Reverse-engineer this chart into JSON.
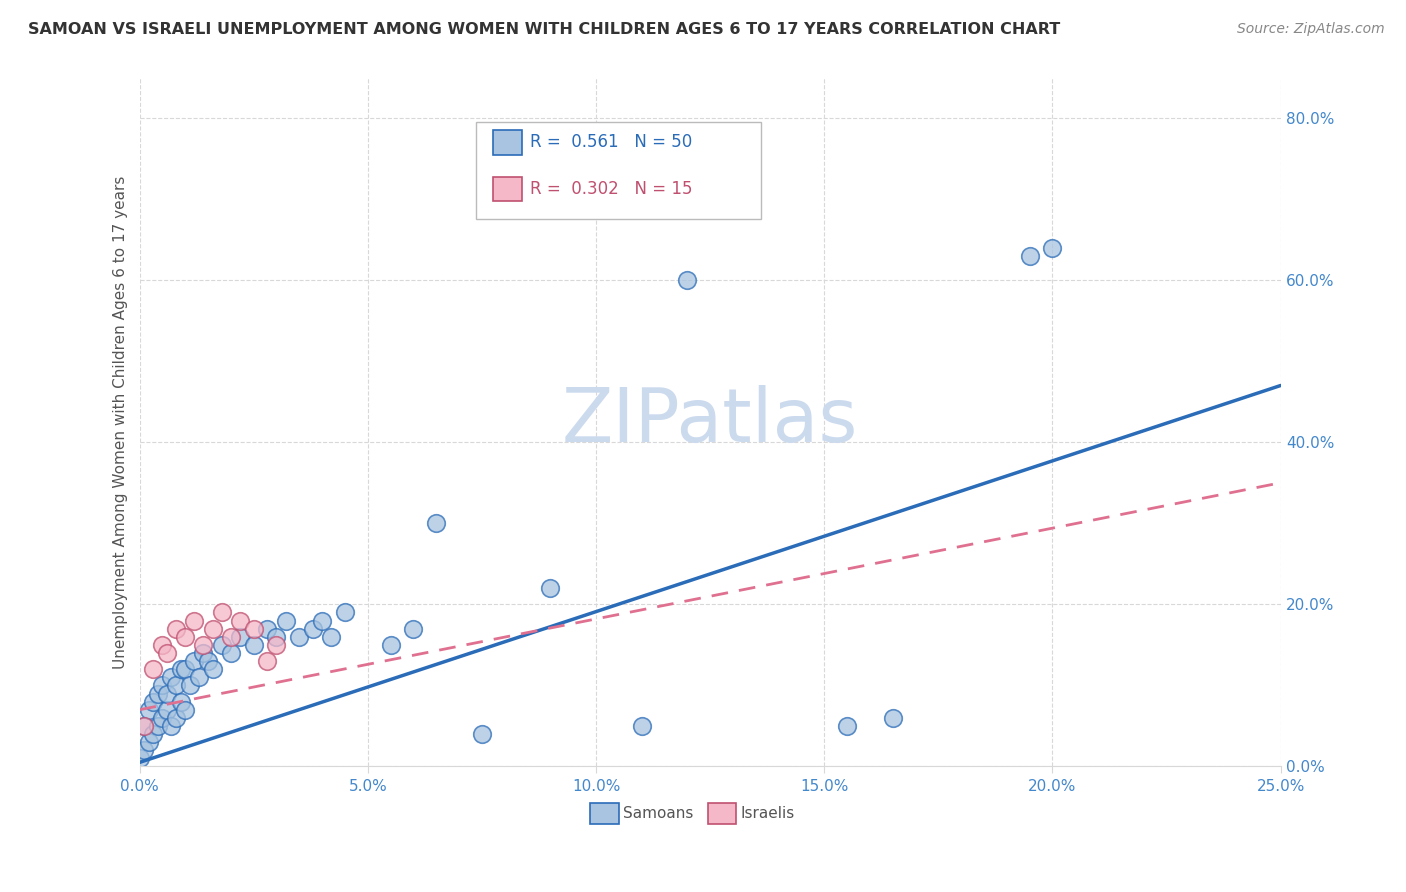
{
  "title": "SAMOAN VS ISRAELI UNEMPLOYMENT AMONG WOMEN WITH CHILDREN AGES 6 TO 17 YEARS CORRELATION CHART",
  "source": "Source: ZipAtlas.com",
  "ylabel": "Unemployment Among Women with Children Ages 6 to 17 years",
  "xlim": [
    0,
    0.25
  ],
  "ylim": [
    0,
    0.85
  ],
  "samoan_R": "0.561",
  "samoan_N": "50",
  "israeli_R": "0.302",
  "israeli_N": "15",
  "samoan_color": "#a8c4e0",
  "israeli_color": "#f4b8c8",
  "samoan_line_color": "#2b6cb8",
  "israeli_line_color": "#e07090",
  "israeli_edge_color": "#c05070",
  "watermark_color": "#ccdaee",
  "background_color": "#ffffff",
  "grid_color": "#d8d8d8",
  "title_color": "#333333",
  "source_color": "#888888",
  "tick_color": "#4488cc",
  "label_color": "#555555",
  "samoan_points_x": [
    0.001,
    0.002,
    0.003,
    0.003,
    0.004,
    0.005,
    0.005,
    0.006,
    0.007,
    0.007,
    0.008,
    0.009,
    0.01,
    0.01,
    0.011,
    0.012,
    0.013,
    0.014,
    0.015,
    0.016,
    0.017,
    0.018,
    0.019,
    0.02,
    0.022,
    0.024,
    0.026,
    0.028,
    0.03,
    0.032,
    0.034,
    0.036,
    0.038,
    0.04,
    0.042,
    0.045,
    0.048,
    0.05,
    0.055,
    0.06,
    0.065,
    0.07,
    0.08,
    0.09,
    0.1,
    0.11,
    0.12,
    0.15,
    0.195,
    0.2
  ],
  "samoan_points_y": [
    0.01,
    0.03,
    0.02,
    0.06,
    0.04,
    0.05,
    0.08,
    0.07,
    0.04,
    0.09,
    0.06,
    0.08,
    0.05,
    0.1,
    0.07,
    0.09,
    0.08,
    0.1,
    0.12,
    0.08,
    0.11,
    0.1,
    0.09,
    0.13,
    0.12,
    0.14,
    0.11,
    0.15,
    0.13,
    0.14,
    0.12,
    0.16,
    0.14,
    0.17,
    0.15,
    0.16,
    0.04,
    0.18,
    0.14,
    0.17,
    0.05,
    0.3,
    0.04,
    0.17,
    0.04,
    0.05,
    0.6,
    0.08,
    0.63,
    0.64
  ],
  "israeli_points_x": [
    0.001,
    0.003,
    0.005,
    0.007,
    0.009,
    0.011,
    0.013,
    0.015,
    0.017,
    0.019,
    0.021,
    0.025,
    0.03,
    0.035,
    0.04
  ],
  "israeli_points_y": [
    0.05,
    0.08,
    0.12,
    0.15,
    0.17,
    0.14,
    0.16,
    0.13,
    0.15,
    0.18,
    0.16,
    0.17,
    0.15,
    0.14,
    0.16
  ],
  "samoan_line_x": [
    0.0,
    0.25
  ],
  "samoan_line_y": [
    0.005,
    0.47
  ],
  "israeli_line_x": [
    0.0,
    0.25
  ],
  "israeli_line_y": [
    0.08,
    0.35
  ]
}
